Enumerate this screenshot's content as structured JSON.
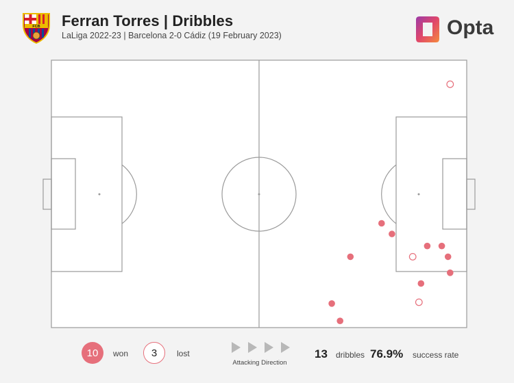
{
  "header": {
    "title": "Ferran Torres | Dribbles",
    "subtitle": "LaLiga 2022-23 | Barcelona 2-0 Cádiz (19 February 2023)",
    "crest_text": "FCB",
    "brand": "Opta"
  },
  "chart_data": {
    "type": "scatter",
    "x_axis": "pitch length (0 = own goal line, 100 = opponent goal line)",
    "y_axis": "pitch width (0 = top touchline, 100 = bottom touchline)",
    "xlim": [
      0,
      100
    ],
    "ylim": [
      0,
      100
    ],
    "series": [
      {
        "name": "won",
        "marker": "filled circle",
        "color": "#e66f7b",
        "points": [
          {
            "x": 79.5,
            "y": 61.0
          },
          {
            "x": 82.0,
            "y": 65.0
          },
          {
            "x": 90.5,
            "y": 69.5
          },
          {
            "x": 94.0,
            "y": 69.5
          },
          {
            "x": 95.5,
            "y": 73.5
          },
          {
            "x": 96.0,
            "y": 79.5
          },
          {
            "x": 89.0,
            "y": 83.5
          },
          {
            "x": 72.0,
            "y": 73.5
          },
          {
            "x": 67.5,
            "y": 91.0
          },
          {
            "x": 69.5,
            "y": 97.5
          }
        ]
      },
      {
        "name": "lost",
        "marker": "hollow circle",
        "color": "#e66f7b",
        "points": [
          {
            "x": 96.0,
            "y": 9.0
          },
          {
            "x": 87.0,
            "y": 73.5
          },
          {
            "x": 88.5,
            "y": 90.5
          }
        ]
      }
    ]
  },
  "footer": {
    "won_count": "10",
    "won_label": "won",
    "lost_count": "3",
    "lost_label": "lost",
    "direction_label": "Attacking Direction",
    "dribbles_value": "13",
    "dribbles_label": "dribbles",
    "success_value": "76.9%",
    "success_label": "success rate"
  },
  "colors": {
    "accent": "#e66f7b",
    "pitch_line": "#9a9a9a",
    "pitch_fill": "#ffffff",
    "background": "#f3f3f3",
    "arrow": "#b8b8b8",
    "opta_gradient_start": "#9b3aa8",
    "opta_gradient_end": "#f58a3c"
  }
}
